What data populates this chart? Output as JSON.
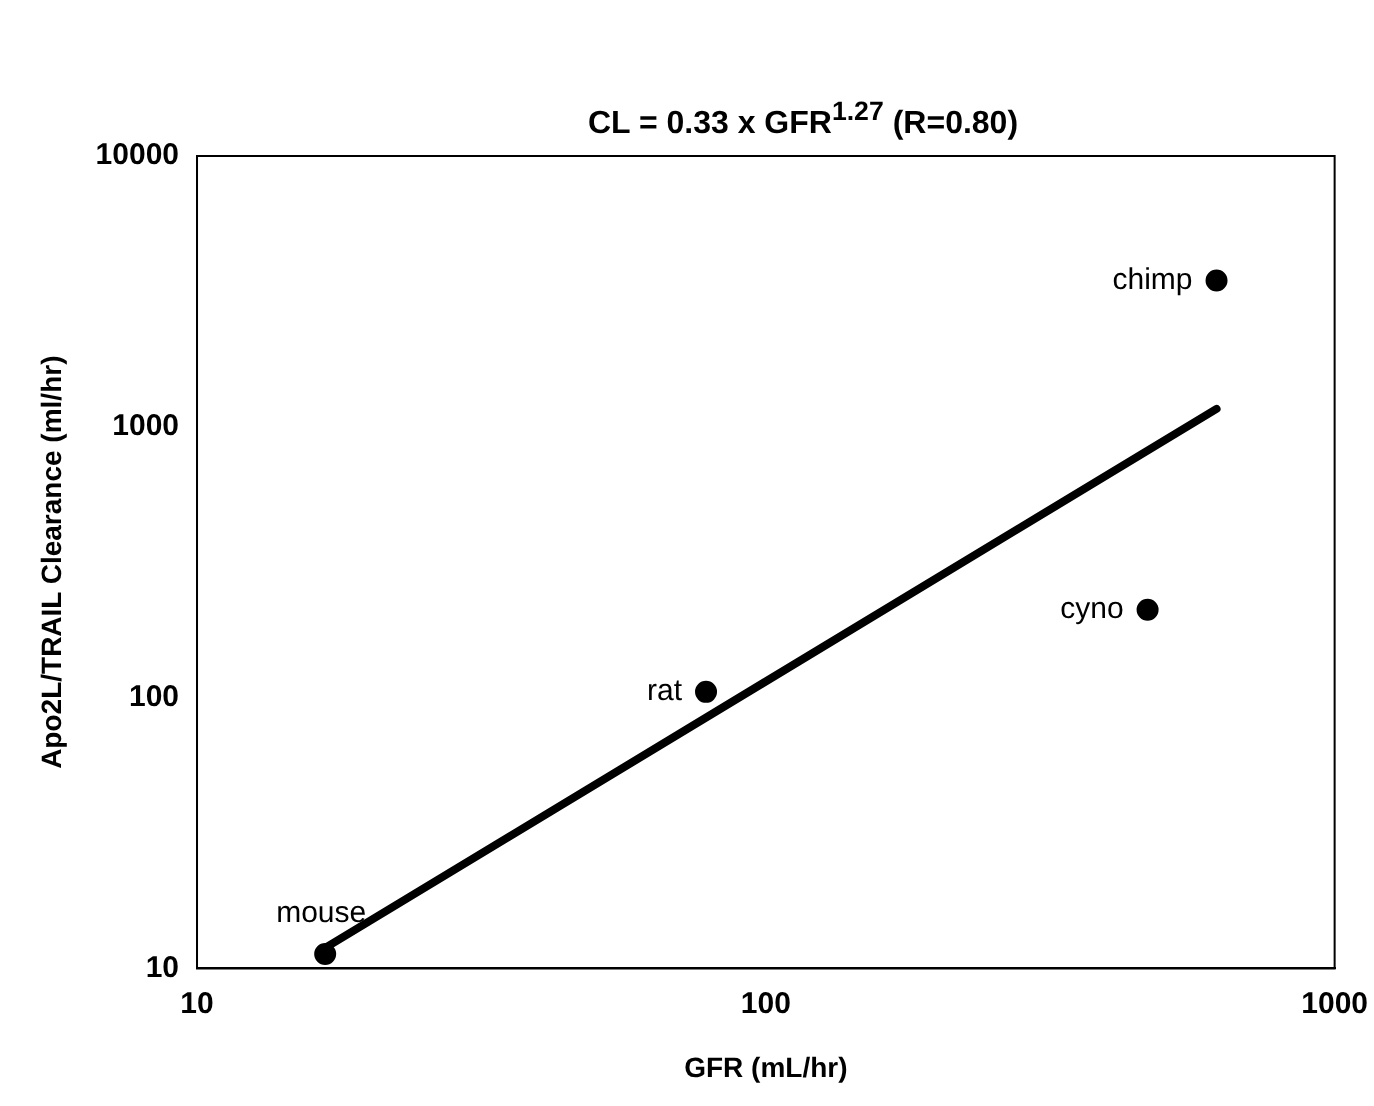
{
  "chart_data": {
    "type": "scatter",
    "title": "CL = 0.33 x GFR$^{1.27}$ (R=0.80)",
    "xlabel": "GFR (mL/hr)",
    "ylabel": "Apo2L/TRAIL Clearance (ml/hr)",
    "log": "xy",
    "xlim": [
      10,
      1000
    ],
    "ylim": [
      10,
      10000
    ],
    "xticks": [
      10,
      100,
      1000
    ],
    "yticks": [
      10,
      100,
      1000,
      10000
    ],
    "grid": false,
    "legend": false,
    "marker": "circle",
    "series": [
      {
        "type": "scatter",
        "color": "#000000",
        "x": [
          16.8,
          78.5,
          469,
          620
        ],
        "values": [
          11.3,
          105,
          211,
          3470
        ]
      },
      {
        "type": "line",
        "color": "#000000",
        "marker": "none",
        "line_style": "solid",
        "x": [
          16.8,
          620
        ],
        "values": [
          11.9,
          1165
        ]
      }
    ],
    "annotations": [
      {
        "text": "mouse",
        "x": 16.8,
        "y": 11.3
      },
      {
        "text": "rat",
        "x": 78.5,
        "y": 105
      },
      {
        "text": "cyno",
        "x": 469,
        "y": 211
      },
      {
        "text": "chimp",
        "x": 620,
        "y": 3470
      }
    ]
  }
}
